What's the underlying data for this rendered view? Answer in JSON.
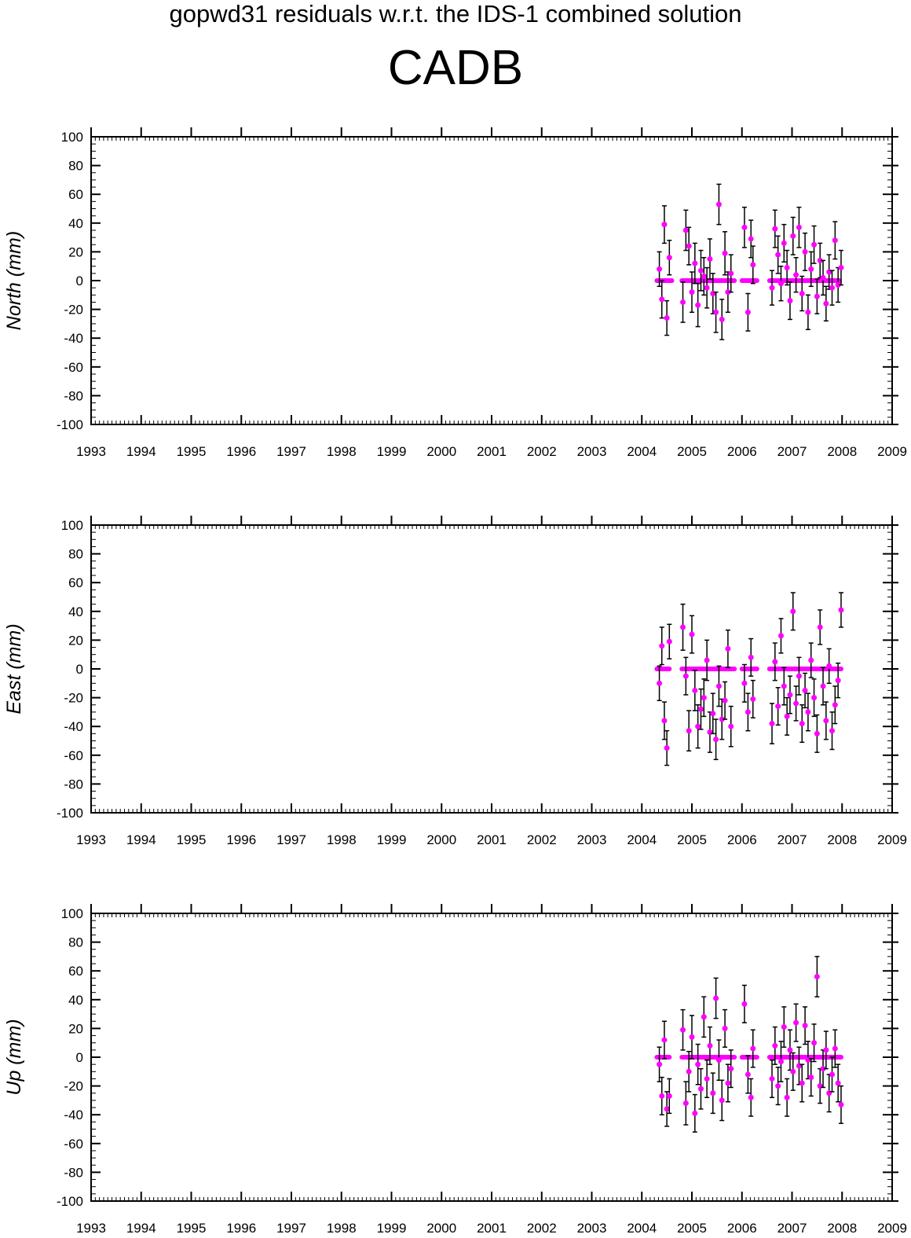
{
  "header": {
    "title": "gopwd31 residuals w.r.t. the IDS-1 combined solution",
    "station": "CADB"
  },
  "colors": {
    "points": "#ff00ff",
    "errorbars": "#000000",
    "axes": "#000000"
  },
  "chart_data": [
    {
      "type": "scatter",
      "ylabel": "North (mm)",
      "xlim": [
        1993,
        2009
      ],
      "ylim": [
        -100,
        100
      ],
      "xticks": [
        1993,
        1994,
        1995,
        1996,
        1997,
        1998,
        1999,
        2000,
        2001,
        2002,
        2003,
        2004,
        2005,
        2006,
        2007,
        2008,
        2009
      ],
      "yticks": [
        -100,
        -80,
        -60,
        -40,
        -20,
        0,
        20,
        40,
        60,
        80,
        100
      ],
      "grid": false,
      "series": [
        {
          "x": [
            2004.35,
            2004.4,
            2004.45,
            2004.5,
            2004.55,
            2004.82,
            2004.88,
            2004.94,
            2005.0,
            2005.06,
            2005.12,
            2005.18,
            2005.24,
            2005.3,
            2005.36,
            2005.42,
            2005.48,
            2005.54,
            2005.6,
            2005.66,
            2005.72,
            2005.78,
            2006.05,
            2006.12,
            2006.18,
            2006.22,
            2006.6,
            2006.66,
            2006.72,
            2006.78,
            2006.84,
            2006.9,
            2006.96,
            2007.02,
            2007.08,
            2007.14,
            2007.2,
            2007.26,
            2007.32,
            2007.38,
            2007.44,
            2007.5,
            2007.56,
            2007.62,
            2007.68,
            2007.74,
            2007.8,
            2007.86,
            2007.92,
            2007.98
          ],
          "y": [
            8,
            -13,
            39,
            -26,
            16,
            -15,
            35,
            24,
            -8,
            12,
            -17,
            7,
            3,
            -5,
            15,
            -9,
            -22,
            53,
            -27,
            19,
            -8,
            5,
            37,
            -22,
            29,
            11,
            -5,
            36,
            18,
            -2,
            26,
            9,
            -14,
            31,
            4,
            37,
            -9,
            20,
            -22,
            8,
            25,
            -11,
            14,
            2,
            -16,
            6,
            -5,
            28,
            -3,
            9
          ],
          "err": [
            12,
            13,
            13,
            12,
            12,
            14,
            14,
            13,
            14,
            14,
            15,
            14,
            13,
            14,
            14,
            14,
            14,
            14,
            14,
            15,
            14,
            13,
            14,
            13,
            13,
            13,
            12,
            13,
            13,
            12,
            13,
            12,
            13,
            13,
            12,
            14,
            12,
            13,
            12,
            12,
            13,
            12,
            12,
            12,
            12,
            12,
            12,
            13,
            12,
            12
          ],
          "zero_segments": [
            [
              2004.3,
              2004.6
            ],
            [
              2004.8,
              2005.85
            ],
            [
              2006.0,
              2006.3
            ],
            [
              2006.55,
              2007.95
            ]
          ]
        }
      ]
    },
    {
      "type": "scatter",
      "ylabel": "East (mm)",
      "xlim": [
        1993,
        2009
      ],
      "ylim": [
        -100,
        100
      ],
      "xticks": [
        1993,
        1994,
        1995,
        1996,
        1997,
        1998,
        1999,
        2000,
        2001,
        2002,
        2003,
        2004,
        2005,
        2006,
        2007,
        2008,
        2009
      ],
      "yticks": [
        -100,
        -80,
        -60,
        -40,
        -20,
        0,
        20,
        40,
        60,
        80,
        100
      ],
      "grid": false,
      "series": [
        {
          "x": [
            2004.35,
            2004.4,
            2004.45,
            2004.5,
            2004.55,
            2004.82,
            2004.88,
            2004.94,
            2005.0,
            2005.06,
            2005.12,
            2005.18,
            2005.24,
            2005.3,
            2005.36,
            2005.42,
            2005.48,
            2005.54,
            2005.6,
            2005.66,
            2005.72,
            2005.78,
            2006.05,
            2006.12,
            2006.18,
            2006.22,
            2006.6,
            2006.66,
            2006.72,
            2006.78,
            2006.84,
            2006.9,
            2006.96,
            2007.02,
            2007.08,
            2007.14,
            2007.2,
            2007.26,
            2007.32,
            2007.38,
            2007.44,
            2007.5,
            2007.56,
            2007.62,
            2007.68,
            2007.74,
            2007.8,
            2007.86,
            2007.92,
            2007.98
          ],
          "y": [
            -10,
            16,
            -36,
            -55,
            19,
            29,
            -5,
            -43,
            24,
            -15,
            -40,
            -28,
            -20,
            6,
            -44,
            -31,
            -49,
            -12,
            -35,
            -22,
            14,
            -40,
            -10,
            -30,
            8,
            -21,
            -38,
            5,
            -26,
            23,
            -12,
            -33,
            -18,
            40,
            -24,
            -5,
            -38,
            -15,
            -30,
            6,
            -20,
            -45,
            29,
            -12,
            -36,
            2,
            -43,
            -25,
            -8,
            41
          ],
          "err": [
            12,
            13,
            13,
            12,
            12,
            16,
            13,
            14,
            13,
            14,
            15,
            14,
            13,
            14,
            14,
            14,
            14,
            14,
            14,
            13,
            13,
            14,
            13,
            13,
            13,
            13,
            14,
            13,
            13,
            12,
            13,
            13,
            13,
            13,
            12,
            13,
            13,
            12,
            13,
            12,
            13,
            13,
            12,
            13,
            13,
            12,
            13,
            13,
            12,
            12
          ],
          "zero_segments": [
            [
              2004.3,
              2004.55
            ],
            [
              2004.8,
              2005.85
            ],
            [
              2006.0,
              2006.3
            ],
            [
              2006.55,
              2007.98
            ]
          ]
        }
      ]
    },
    {
      "type": "scatter",
      "ylabel": "Up (mm)",
      "xlim": [
        1993,
        2009
      ],
      "ylim": [
        -100,
        100
      ],
      "xticks": [
        1993,
        1994,
        1995,
        1996,
        1997,
        1998,
        1999,
        2000,
        2001,
        2002,
        2003,
        2004,
        2005,
        2006,
        2007,
        2008,
        2009
      ],
      "yticks": [
        -100,
        -80,
        -60,
        -40,
        -20,
        0,
        20,
        40,
        60,
        80,
        100
      ],
      "grid": false,
      "series": [
        {
          "x": [
            2004.35,
            2004.4,
            2004.45,
            2004.5,
            2004.55,
            2004.82,
            2004.88,
            2004.94,
            2005.0,
            2005.06,
            2005.12,
            2005.18,
            2005.24,
            2005.3,
            2005.36,
            2005.42,
            2005.48,
            2005.54,
            2005.6,
            2005.66,
            2005.72,
            2005.78,
            2006.05,
            2006.12,
            2006.18,
            2006.22,
            2006.6,
            2006.66,
            2006.72,
            2006.78,
            2006.84,
            2006.9,
            2006.96,
            2007.02,
            2007.08,
            2007.14,
            2007.2,
            2007.26,
            2007.32,
            2007.38,
            2007.44,
            2007.5,
            2007.56,
            2007.62,
            2007.68,
            2007.74,
            2007.8,
            2007.86,
            2007.92,
            2007.98
          ],
          "y": [
            -5,
            -27,
            12,
            -36,
            -27,
            19,
            -32,
            -10,
            14,
            -39,
            -5,
            -22,
            28,
            -15,
            8,
            -25,
            41,
            -2,
            -30,
            20,
            -18,
            -8,
            37,
            -12,
            -28,
            6,
            -15,
            8,
            -20,
            -3,
            21,
            -28,
            5,
            -10,
            24,
            -6,
            -18,
            22,
            -2,
            -14,
            10,
            56,
            -20,
            -8,
            5,
            -25,
            -12,
            6,
            -18,
            -33
          ],
          "err": [
            12,
            13,
            13,
            12,
            12,
            14,
            15,
            14,
            15,
            13,
            14,
            14,
            14,
            13,
            13,
            14,
            14,
            14,
            14,
            13,
            13,
            13,
            13,
            13,
            13,
            13,
            13,
            13,
            13,
            14,
            14,
            13,
            14,
            13,
            13,
            13,
            13,
            13,
            13,
            13,
            13,
            14,
            12,
            13,
            13,
            13,
            12,
            13,
            13,
            13
          ],
          "zero_segments": [
            [
              2004.3,
              2004.55
            ],
            [
              2004.8,
              2005.85
            ],
            [
              2006.0,
              2006.3
            ],
            [
              2006.55,
              2007.98
            ]
          ]
        }
      ]
    }
  ]
}
